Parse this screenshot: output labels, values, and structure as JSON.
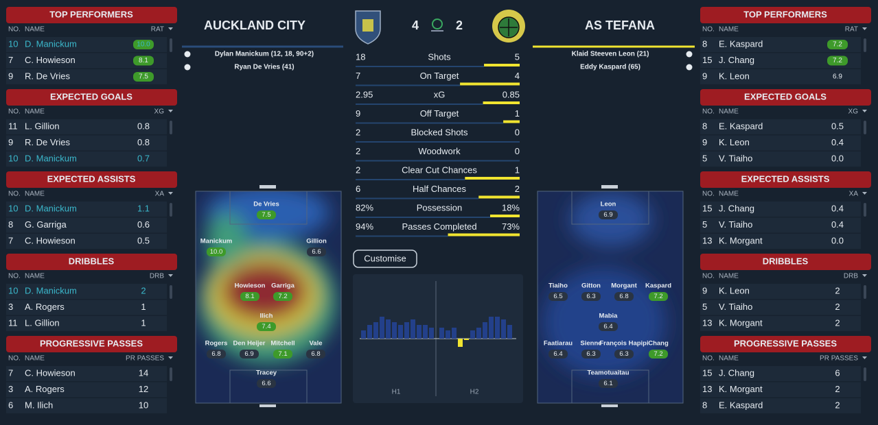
{
  "home": {
    "name": "AUCKLAND CITY",
    "score": 4,
    "scorers": [
      "Dylan Manickum (12, 18, 90+2)",
      "Ryan De Vries (41)"
    ],
    "players": [
      {
        "name": "De Vries",
        "rating": "7.5"
      },
      {
        "name": "Manickum",
        "rating": "10.0"
      },
      {
        "name": "Gillion",
        "rating": "6.6"
      },
      {
        "name": "Howieson",
        "rating": "8.1"
      },
      {
        "name": "Garriga",
        "rating": "7.2"
      },
      {
        "name": "Ilich",
        "rating": "7.4"
      },
      {
        "name": "Rogers",
        "rating": "6.8"
      },
      {
        "name": "Den Heijer",
        "rating": "6.9"
      },
      {
        "name": "Mitchell",
        "rating": "7.1"
      },
      {
        "name": "Vale",
        "rating": "6.8"
      },
      {
        "name": "Tracey",
        "rating": "6.6"
      }
    ]
  },
  "away": {
    "name": "AS TEFANA",
    "score": 2,
    "scorers": [
      "Klaid Steeven Leon (21)",
      "Eddy Kaspard (65)"
    ],
    "players": [
      {
        "name": "Leon",
        "rating": "6.9"
      },
      {
        "name": "Tiaiho",
        "rating": "6.5"
      },
      {
        "name": "Gitton",
        "rating": "6.3"
      },
      {
        "name": "Morgant",
        "rating": "6.8"
      },
      {
        "name": "Kaspard",
        "rating": "7.2"
      },
      {
        "name": "Mabia",
        "rating": "6.4"
      },
      {
        "name": "Faatiarau",
        "rating": "6.4"
      },
      {
        "name": "Sienne",
        "rating": "6.3"
      },
      {
        "name": "François Hapipi",
        "rating": "6.3"
      },
      {
        "name": "Chang",
        "rating": "7.2"
      },
      {
        "name": "Teamotuaitau",
        "rating": "6.1"
      }
    ]
  },
  "stats": [
    {
      "label": "Shots",
      "home": 18,
      "away": 5
    },
    {
      "label": "On Target",
      "home": 7,
      "away": 4
    },
    {
      "label": "xG",
      "home": 2.95,
      "away": 0.85
    },
    {
      "label": "Off Target",
      "home": 9,
      "away": 1
    },
    {
      "label": "Blocked Shots",
      "home": 2,
      "away": 0
    },
    {
      "label": "Woodwork",
      "home": 2,
      "away": 0
    },
    {
      "label": "Clear Cut Chances",
      "home": 2,
      "away": 1
    },
    {
      "label": "Half Chances",
      "home": 6,
      "away": 2
    },
    {
      "label": "Possession",
      "home": {
        "value": 82,
        "label": "82%"
      },
      "away": {
        "value": 18,
        "label": "18%"
      }
    },
    {
      "label": "Passes Completed",
      "home": {
        "value": 94,
        "label": "94%"
      },
      "away": {
        "value": 73,
        "label": "73%"
      }
    }
  ],
  "button": "Customise",
  "momentum": {
    "labels": [
      "H1",
      "H2"
    ],
    "ylim": [
      -10,
      10
    ],
    "values": [
      3,
      5,
      6,
      8,
      7,
      6,
      5,
      6,
      7,
      5,
      5,
      4,
      4,
      3,
      4,
      -3,
      -0.5,
      3,
      4,
      6,
      8,
      8,
      7,
      5
    ]
  },
  "left_panels": [
    {
      "title": "TOP PERFORMERS",
      "columns": [
        "NO.",
        "NAME",
        "RAT"
      ],
      "rows": [
        [
          "10",
          "D. Manickum",
          "10.0"
        ],
        [
          "7",
          "C. Howieson",
          "8.1"
        ],
        [
          "9",
          "R. De Vries",
          "7.5"
        ]
      ],
      "highlight": [
        0
      ],
      "badges": true
    },
    {
      "title": "EXPECTED GOALS",
      "columns": [
        "NO.",
        "NAME",
        "XG"
      ],
      "rows": [
        [
          "11",
          "L. Gillion",
          "0.8"
        ],
        [
          "9",
          "R. De Vries",
          "0.8"
        ],
        [
          "10",
          "D. Manickum",
          "0.7"
        ]
      ],
      "highlight": [
        2
      ],
      "badges": false
    },
    {
      "title": "EXPECTED ASSISTS",
      "columns": [
        "NO.",
        "NAME",
        "XA"
      ],
      "rows": [
        [
          "10",
          "D. Manickum",
          "1.1"
        ],
        [
          "8",
          "G. Garriga",
          "0.6"
        ],
        [
          "7",
          "C. Howieson",
          "0.5"
        ]
      ],
      "highlight": [
        0
      ],
      "badges": false
    },
    {
      "title": "DRIBBLES",
      "columns": [
        "NO.",
        "NAME",
        "DRB"
      ],
      "rows": [
        [
          "10",
          "D. Manickum",
          "2"
        ],
        [
          "3",
          "A. Rogers",
          "1"
        ],
        [
          "11",
          "L. Gillion",
          "1"
        ]
      ],
      "highlight": [
        0
      ],
      "badges": false
    },
    {
      "title": "PROGRESSIVE PASSES",
      "columns": [
        "NO.",
        "NAME",
        "PR PASSES"
      ],
      "rows": [
        [
          "7",
          "C. Howieson",
          "14"
        ],
        [
          "3",
          "A. Rogers",
          "12"
        ],
        [
          "6",
          "M. Ilich",
          "10"
        ]
      ],
      "highlight": [],
      "badges": false
    }
  ],
  "right_panels": [
    {
      "title": "TOP PERFORMERS",
      "columns": [
        "NO.",
        "NAME",
        "RAT"
      ],
      "rows": [
        [
          "8",
          "E. Kaspard",
          "7.2"
        ],
        [
          "15",
          "J. Chang",
          "7.2"
        ],
        [
          "9",
          "K. Leon",
          "6.9"
        ]
      ],
      "highlight": [],
      "badges": true
    },
    {
      "title": "EXPECTED GOALS",
      "columns": [
        "NO.",
        "NAME",
        "XG"
      ],
      "rows": [
        [
          "8",
          "E. Kaspard",
          "0.5"
        ],
        [
          "9",
          "K. Leon",
          "0.4"
        ],
        [
          "5",
          "V. Tiaiho",
          "0.0"
        ]
      ],
      "highlight": [],
      "badges": false
    },
    {
      "title": "EXPECTED ASSISTS",
      "columns": [
        "NO.",
        "NAME",
        "XA"
      ],
      "rows": [
        [
          "15",
          "J. Chang",
          "0.4"
        ],
        [
          "5",
          "V. Tiaiho",
          "0.4"
        ],
        [
          "13",
          "K. Morgant",
          "0.0"
        ]
      ],
      "highlight": [],
      "badges": false
    },
    {
      "title": "DRIBBLES",
      "columns": [
        "NO.",
        "NAME",
        "DRB"
      ],
      "rows": [
        [
          "9",
          "K. Leon",
          "2"
        ],
        [
          "5",
          "V. Tiaiho",
          "2"
        ],
        [
          "13",
          "K. Morgant",
          "2"
        ]
      ],
      "highlight": [],
      "badges": false
    },
    {
      "title": "PROGRESSIVE PASSES",
      "columns": [
        "NO.",
        "NAME",
        "PR PASSES"
      ],
      "rows": [
        [
          "15",
          "J. Chang",
          "6"
        ],
        [
          "13",
          "K. Morgant",
          "2"
        ],
        [
          "8",
          "E. Kaspard",
          "2"
        ]
      ],
      "highlight": [],
      "badges": false
    }
  ]
}
